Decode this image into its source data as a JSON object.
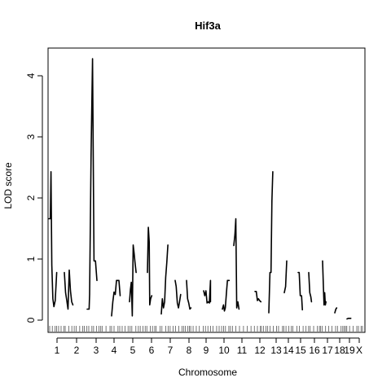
{
  "chart_data": {
    "type": "line",
    "title": "Hif3a",
    "xlabel": "Chromosome",
    "ylabel": "LOD score",
    "ylim": [
      0,
      4.3
    ],
    "y_ticks": [
      0,
      1,
      2,
      3,
      4
    ],
    "grid": false,
    "legend": "none",
    "chromosomes": [
      {
        "label": "1",
        "points": [
          [
            0,
            1.66
          ],
          [
            0.7,
            1.66
          ],
          [
            1.0,
            2.43
          ],
          [
            1.4,
            0.9
          ],
          [
            1.9,
            0.35
          ],
          [
            2.4,
            0.22
          ],
          [
            3.0,
            0.32
          ],
          [
            3.7,
            0.78
          ]
        ]
      },
      {
        "label": "2",
        "points": [
          [
            0,
            0.78
          ],
          [
            0.5,
            0.45
          ],
          [
            1.0,
            0.32
          ],
          [
            1.5,
            0.18
          ],
          [
            2.0,
            0.82
          ],
          [
            2.5,
            0.48
          ],
          [
            3.0,
            0.3
          ],
          [
            3.5,
            0.25
          ]
        ]
      },
      {
        "label": "3",
        "points": [
          [
            0,
            0.18
          ],
          [
            0.8,
            0.18
          ],
          [
            1.0,
            0.42
          ],
          [
            1.6,
            2.7
          ],
          [
            2.2,
            4.28
          ],
          [
            2.8,
            0.97
          ],
          [
            3.4,
            0.97
          ],
          [
            4.0,
            0.65
          ]
        ]
      },
      {
        "label": "4",
        "points": [
          [
            0,
            0.07
          ],
          [
            0.5,
            0.3
          ],
          [
            1.0,
            0.46
          ],
          [
            1.5,
            0.42
          ],
          [
            2.0,
            0.65
          ],
          [
            2.5,
            0.65
          ],
          [
            3.0,
            0.65
          ],
          [
            3.5,
            0.4
          ]
        ]
      },
      {
        "label": "5",
        "points": [
          [
            0,
            0.3
          ],
          [
            0.4,
            0.5
          ],
          [
            0.8,
            0.62
          ],
          [
            1.2,
            0.07
          ],
          [
            1.6,
            1.23
          ],
          [
            2.0,
            1.1
          ],
          [
            2.4,
            0.95
          ],
          [
            2.9,
            0.78
          ]
        ]
      },
      {
        "label": "6",
        "points": [
          [
            0,
            0.78
          ],
          [
            0.4,
            1.52
          ],
          [
            0.8,
            1.28
          ],
          [
            1.0,
            0.25
          ],
          [
            1.4,
            0.35
          ],
          [
            1.9,
            0.4
          ]
        ]
      },
      {
        "label": "7",
        "points": [
          [
            0,
            0.1
          ],
          [
            0.5,
            0.35
          ],
          [
            1.0,
            0.2
          ],
          [
            1.5,
            0.3
          ],
          [
            2.0,
            0.7
          ],
          [
            2.5,
            0.95
          ],
          [
            3.0,
            1.23
          ]
        ]
      },
      {
        "label": "8",
        "points": [
          [
            0,
            0.65
          ],
          [
            0.5,
            0.55
          ],
          [
            1.0,
            0.28
          ],
          [
            1.5,
            0.2
          ],
          [
            2.0,
            0.3
          ],
          [
            2.5,
            0.42
          ]
        ]
      },
      {
        "label": "9",
        "points": [
          [
            0,
            0.65
          ],
          [
            0.5,
            0.35
          ],
          [
            1.0,
            0.28
          ],
          [
            1.5,
            0.18
          ],
          [
            2.0,
            0.2
          ]
        ]
      },
      {
        "label": "10",
        "points": [
          [
            0,
            0.48
          ],
          [
            0.5,
            0.4
          ],
          [
            1.0,
            0.48
          ],
          [
            1.5,
            0.28
          ],
          [
            2.0,
            0.3
          ],
          [
            2.5,
            0.28
          ],
          [
            3.0,
            0.65
          ],
          [
            3.0,
            0.3
          ]
        ]
      },
      {
        "label": "11",
        "points": [
          [
            0,
            0.18
          ],
          [
            0.5,
            0.25
          ],
          [
            0.9,
            0.15
          ],
          [
            1.3,
            0.2
          ],
          [
            1.8,
            0.45
          ],
          [
            2.2,
            0.65
          ],
          [
            3.0,
            0.65
          ]
        ]
      },
      {
        "label": "12",
        "points": [
          [
            0,
            1.22
          ],
          [
            0.5,
            1.4
          ],
          [
            0.9,
            1.66
          ],
          [
            1.3,
            0.2
          ],
          [
            1.8,
            0.3
          ],
          [
            2.3,
            0.18
          ]
        ]
      },
      {
        "label": "13",
        "points": [
          [
            0,
            0.47
          ],
          [
            0.6,
            0.47
          ],
          [
            1.1,
            0.32
          ],
          [
            1.6,
            0.35
          ],
          [
            2.1,
            0.32
          ],
          [
            2.7,
            0.3
          ]
        ]
      },
      {
        "label": "14",
        "points": [
          [
            0,
            0.12
          ],
          [
            0.5,
            0.78
          ],
          [
            1.0,
            0.78
          ],
          [
            1.4,
            1.95
          ],
          [
            1.8,
            2.43
          ]
        ]
      },
      {
        "label": "15",
        "points": [
          [
            0,
            0.45
          ],
          [
            0.6,
            0.55
          ],
          [
            1.1,
            0.97
          ]
        ]
      },
      {
        "label": "16",
        "points": [
          [
            0,
            0.78
          ],
          [
            0.5,
            0.78
          ],
          [
            1.0,
            0.4
          ],
          [
            1.6,
            0.4
          ],
          [
            2.0,
            0.17
          ]
        ]
      },
      {
        "label": "17",
        "points": [
          [
            0,
            0.78
          ],
          [
            0.5,
            0.45
          ],
          [
            1.0,
            0.38
          ],
          [
            1.3,
            0.3
          ]
        ]
      },
      {
        "label": "18",
        "points": [
          [
            0,
            0.97
          ],
          [
            0.4,
            0.55
          ],
          [
            0.7,
            0.25
          ],
          [
            1.0,
            0.45
          ],
          [
            1.3,
            0.25
          ],
          [
            1.6,
            0.3
          ]
        ]
      },
      {
        "label": "19",
        "points": [
          [
            0,
            0.12
          ],
          [
            0.5,
            0.18
          ],
          [
            0.9,
            0.2
          ]
        ]
      },
      {
        "label": "X",
        "points": [
          [
            0,
            0.02
          ],
          [
            0.6,
            0.03
          ],
          [
            1.2,
            0.03
          ],
          [
            1.8,
            0.03
          ]
        ]
      }
    ]
  }
}
